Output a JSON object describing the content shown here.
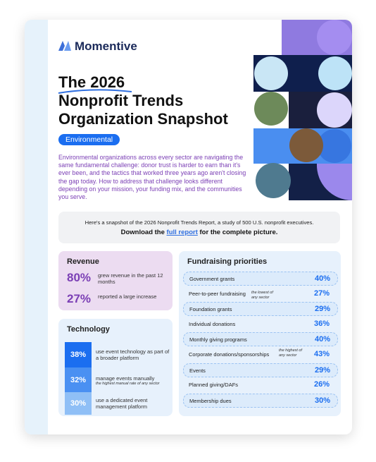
{
  "brand": "Momentive",
  "title": {
    "line1": "The 2026",
    "line2": "Nonprofit Trends",
    "line3": "Organization Snapshot"
  },
  "tag": "Environmental",
  "intro": "Environmental organizations across every sector are navigating the same fundamental challenge: donor trust is harder to earn than it's ever been, and the tactics that worked three years ago aren't closing the gap today. How to address that challenge looks different depending on your mission, your funding mix, and the communities you serve.",
  "snapshot": {
    "line1": "Here's a snapshot of the 2026 Nonprofit Trends Report, a study of 500 U.S. nonprofit executives.",
    "before": "Download the ",
    "link": "full report",
    "after": " for the complete picture."
  },
  "revenue": {
    "title": "Revenue",
    "items": [
      {
        "value": "80%",
        "text": "grew revenue in the past 12 months"
      },
      {
        "value": "27%",
        "text": "reported a large increase"
      }
    ]
  },
  "technology": {
    "title": "Technology",
    "items": [
      {
        "value": "38%",
        "text": "use event technology as part of a broader platform"
      },
      {
        "value": "32%",
        "text": "manage events manually",
        "note": "the highest manual rate of any sector"
      },
      {
        "value": "30%",
        "text": "use a dedicated event management platform"
      }
    ]
  },
  "fundraising": {
    "title": "Fundraising priorities",
    "rows": [
      {
        "label": "Government grants",
        "value": "40%"
      },
      {
        "label": "Peer-to-peer fundraising",
        "note": "the lowest of any sector",
        "value": "27%"
      },
      {
        "label": "Foundation grants",
        "value": "29%"
      },
      {
        "label": "Individual donations",
        "value": "36%"
      },
      {
        "label": "Monthly giving programs",
        "value": "40%"
      },
      {
        "label": "Corporate donations/sponsorships",
        "note": "the highest of any sector",
        "value": "43%"
      },
      {
        "label": "Events",
        "value": "29%"
      },
      {
        "label": "Planned giving/DAFs",
        "value": "26%"
      },
      {
        "label": "Membership dues",
        "value": "30%"
      }
    ]
  }
}
